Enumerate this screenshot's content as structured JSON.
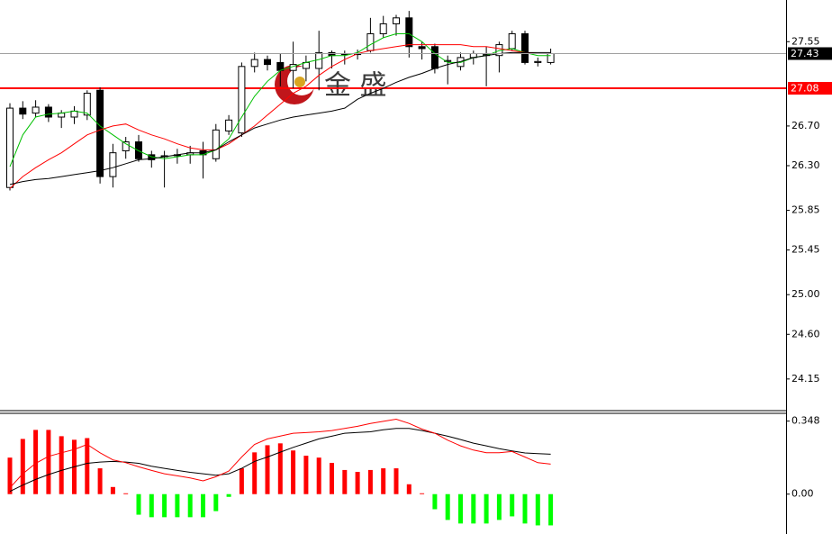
{
  "chart_data": [
    {
      "type": "candlestick",
      "open": [
        26.08,
        26.88,
        26.83,
        26.89,
        26.79,
        26.79,
        26.81,
        27.06,
        26.19,
        26.45,
        26.54,
        26.41,
        26.39,
        26.41,
        26.41,
        26.45,
        26.37,
        26.65,
        26.63,
        27.3,
        27.37,
        27.34,
        27.26,
        27.28,
        27.28,
        27.44,
        27.43,
        27.43,
        27.46,
        27.63,
        27.73,
        27.79,
        27.5,
        27.5,
        27.35,
        27.3,
        27.39,
        27.41,
        27.41,
        27.48,
        27.63,
        27.34,
        27.34
      ],
      "high": [
        26.93,
        26.95,
        26.96,
        26.92,
        26.86,
        26.9,
        27.06,
        27.09,
        26.52,
        26.59,
        26.61,
        26.45,
        26.45,
        26.47,
        26.5,
        26.54,
        26.72,
        26.81,
        27.34,
        27.44,
        27.41,
        27.43,
        27.55,
        27.41,
        27.66,
        27.46,
        27.46,
        27.47,
        27.79,
        27.81,
        27.82,
        27.86,
        27.55,
        27.53,
        27.41,
        27.44,
        27.46,
        27.5,
        27.55,
        27.66,
        27.66,
        27.39,
        27.48
      ],
      "low": [
        26.05,
        26.77,
        26.79,
        26.74,
        26.68,
        26.72,
        26.76,
        26.12,
        26.08,
        26.37,
        26.34,
        26.28,
        26.08,
        26.32,
        26.32,
        26.17,
        26.34,
        26.61,
        26.59,
        27.24,
        27.26,
        27.1,
        27.08,
        27.15,
        27.06,
        27.28,
        27.32,
        27.37,
        27.44,
        27.59,
        27.61,
        27.39,
        27.37,
        27.23,
        27.12,
        27.26,
        27.32,
        27.1,
        27.24,
        27.46,
        27.32,
        27.3,
        27.32
      ],
      "close": [
        26.88,
        26.82,
        26.89,
        26.79,
        26.83,
        26.85,
        27.03,
        26.19,
        26.43,
        26.54,
        26.37,
        26.36,
        26.4,
        26.4,
        26.43,
        26.41,
        26.66,
        26.76,
        27.3,
        27.37,
        27.32,
        27.26,
        27.32,
        27.34,
        27.44,
        27.41,
        27.42,
        27.42,
        27.63,
        27.73,
        27.79,
        27.5,
        27.48,
        27.28,
        27.36,
        27.39,
        27.43,
        27.42,
        27.52,
        27.63,
        27.34,
        27.35,
        27.43
      ],
      "up_color": "#ffffff",
      "down_color": "#000000",
      "series": [
        {
          "color": "#00c000",
          "values": [
            26.29,
            26.61,
            26.79,
            26.82,
            26.83,
            26.85,
            26.83,
            26.7,
            26.61,
            26.52,
            26.45,
            26.39,
            26.37,
            26.39,
            26.41,
            26.41,
            26.46,
            26.57,
            26.79,
            27.0,
            27.15,
            27.26,
            27.3,
            27.34,
            27.37,
            27.41,
            27.41,
            27.44,
            27.52,
            27.59,
            27.63,
            27.63,
            27.55,
            27.43,
            27.34,
            27.34,
            27.39,
            27.41,
            27.46,
            27.48,
            27.44,
            27.41,
            27.41
          ]
        },
        {
          "color": "#ff0000",
          "values": [
            26.07,
            26.19,
            26.28,
            26.36,
            26.43,
            26.52,
            26.61,
            26.66,
            26.7,
            26.72,
            26.66,
            26.61,
            26.57,
            26.52,
            26.48,
            26.46,
            26.46,
            26.52,
            26.61,
            26.7,
            26.81,
            26.92,
            27.03,
            27.1,
            27.21,
            27.3,
            27.37,
            27.43,
            27.46,
            27.48,
            27.5,
            27.52,
            27.52,
            27.52,
            27.52,
            27.52,
            27.5,
            27.5,
            27.48,
            27.46,
            27.44,
            27.43,
            27.43
          ]
        },
        {
          "color": "#000000",
          "values": [
            26.11,
            26.14,
            26.16,
            26.17,
            26.19,
            26.21,
            26.23,
            26.25,
            26.28,
            26.32,
            26.36,
            26.37,
            26.39,
            26.41,
            26.43,
            26.43,
            26.46,
            26.54,
            26.61,
            26.68,
            26.72,
            26.76,
            26.79,
            26.81,
            26.83,
            26.85,
            26.88,
            26.97,
            27.03,
            27.08,
            27.14,
            27.19,
            27.23,
            27.28,
            27.32,
            27.35,
            27.39,
            27.41,
            27.43,
            27.44,
            27.44,
            27.44,
            27.44
          ]
        }
      ],
      "ylim": [
        23.84,
        27.97
      ],
      "yticks": [
        27.55,
        {
          "value": 26.7,
          "label": "26.70"
        },
        {
          "value": 26.3,
          "label": "26.30"
        },
        25.85,
        25.45,
        {
          "value": 25,
          "label": "25.00"
        },
        {
          "value": 24.6,
          "label": "24.60"
        },
        24.15
      ],
      "current_price": 27.43,
      "current_color": "#000000",
      "level_line": 27.08,
      "level_color": "#ff0000",
      "watermark": "金 盛"
    },
    {
      "type": "macd",
      "values": [
        0.174,
        0.263,
        0.306,
        0.306,
        0.276,
        0.259,
        0.267,
        0.123,
        0.034,
        0.004,
        -0.098,
        -0.11,
        -0.11,
        -0.11,
        -0.11,
        -0.11,
        -0.081,
        -0.013,
        0.123,
        0.199,
        0.233,
        0.242,
        0.208,
        0.183,
        0.174,
        0.149,
        0.115,
        0.106,
        0.115,
        0.123,
        0.123,
        0.047,
        0.004,
        -0.072,
        -0.123,
        -0.14,
        -0.14,
        -0.14,
        -0.123,
        -0.106,
        -0.14,
        -0.149,
        -0.149
      ],
      "positive_color": "#ff0000",
      "negative_color": "#00ff00",
      "series": [
        {
          "color": "#000000",
          "values": [
            0.013,
            0.043,
            0.07,
            0.093,
            0.113,
            0.13,
            0.147,
            0.153,
            0.156,
            0.153,
            0.147,
            0.133,
            0.123,
            0.113,
            0.104,
            0.097,
            0.09,
            0.097,
            0.123,
            0.156,
            0.177,
            0.2,
            0.223,
            0.243,
            0.263,
            0.276,
            0.29,
            0.294,
            0.297,
            0.307,
            0.313,
            0.313,
            0.303,
            0.29,
            0.276,
            0.26,
            0.243,
            0.23,
            0.217,
            0.206,
            0.196,
            0.193,
            0.19
          ]
        },
        {
          "color": "#ff0000",
          "values": [
            0.03,
            0.097,
            0.147,
            0.18,
            0.197,
            0.213,
            0.237,
            0.197,
            0.163,
            0.15,
            0.13,
            0.113,
            0.097,
            0.087,
            0.077,
            0.063,
            0.083,
            0.11,
            0.177,
            0.237,
            0.263,
            0.277,
            0.29,
            0.293,
            0.297,
            0.303,
            0.313,
            0.323,
            0.337,
            0.347,
            0.357,
            0.337,
            0.31,
            0.29,
            0.257,
            0.23,
            0.21,
            0.197,
            0.197,
            0.203,
            0.177,
            0.15,
            0.143
          ]
        }
      ],
      "ylim": [
        -0.19,
        0.385
      ],
      "yticks": [
        0.348,
        {
          "value": 0,
          "label": "0.00"
        }
      ]
    }
  ]
}
